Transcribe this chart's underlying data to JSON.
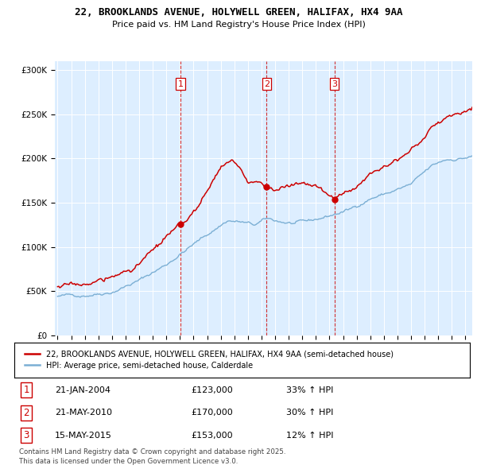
{
  "title_line1": "22, BROOKLANDS AVENUE, HOLYWELL GREEN, HALIFAX, HX4 9AA",
  "title_line2": "Price paid vs. HM Land Registry's House Price Index (HPI)",
  "property_label": "22, BROOKLANDS AVENUE, HOLYWELL GREEN, HALIFAX, HX4 9AA (semi-detached house)",
  "hpi_label": "HPI: Average price, semi-detached house, Calderdale",
  "footer_line1": "Contains HM Land Registry data © Crown copyright and database right 2025.",
  "footer_line2": "This data is licensed under the Open Government Licence v3.0.",
  "sales": [
    {
      "num": 1,
      "date_label": "21-JAN-2004",
      "price": 123000,
      "hpi_pct": "33% ↑ HPI",
      "x_year": 2004.05
    },
    {
      "num": 2,
      "date_label": "21-MAY-2010",
      "price": 170000,
      "hpi_pct": "30% ↑ HPI",
      "x_year": 2010.38
    },
    {
      "num": 3,
      "date_label": "15-MAY-2015",
      "price": 153000,
      "hpi_pct": "12% ↑ HPI",
      "x_year": 2015.37
    }
  ],
  "price_color": "#cc0000",
  "hpi_color": "#7bafd4",
  "vline_color": "#cc0000",
  "bg_color": "#ddeeff",
  "ylim": [
    0,
    310000
  ],
  "xlim_start": 1994.8,
  "xlim_end": 2025.5,
  "yticks": [
    0,
    50000,
    100000,
    150000,
    200000,
    250000,
    300000
  ],
  "ytick_labels": [
    "£0",
    "£50K",
    "£100K",
    "£150K",
    "£200K",
    "£250K",
    "£300K"
  ]
}
